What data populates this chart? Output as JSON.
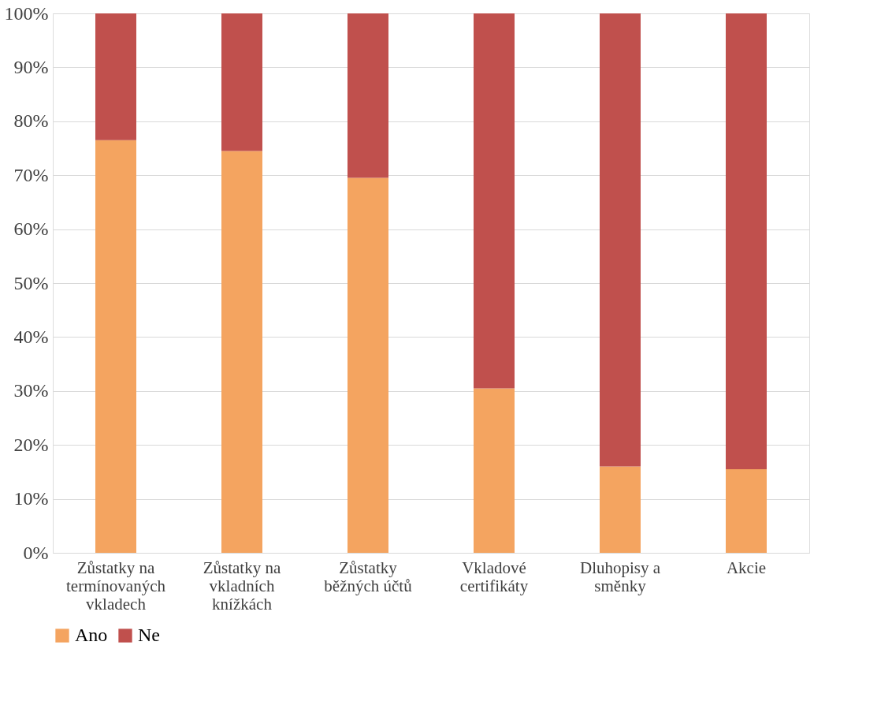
{
  "chart_data": {
    "type": "bar",
    "stacked": true,
    "categories": [
      "Zůstatky na termínovaných vkladech",
      "Zůstatky na vkladních knížkách",
      "Zůstatky běžných účtů",
      "Vkladové certifikáty",
      "Dluhopisy a směnky",
      "Akcie"
    ],
    "series": [
      {
        "name": "Ano",
        "color": "#f4a460",
        "values": [
          76.5,
          74.5,
          69.5,
          30.5,
          16,
          15.5
        ]
      },
      {
        "name": "Ne",
        "color": "#c0504d",
        "values": [
          23.5,
          25.5,
          30.5,
          69.5,
          84,
          84.5
        ]
      }
    ],
    "ylim": [
      0,
      100
    ],
    "yticks": [
      {
        "value": 0,
        "label": "0%"
      },
      {
        "value": 10,
        "label": "10%"
      },
      {
        "value": 20,
        "label": "20%"
      },
      {
        "value": 30,
        "label": "30%"
      },
      {
        "value": 40,
        "label": "40%"
      },
      {
        "value": 50,
        "label": "50%"
      },
      {
        "value": 60,
        "label": "60%"
      },
      {
        "value": 70,
        "label": "70%"
      },
      {
        "value": 80,
        "label": "80%"
      },
      {
        "value": 90,
        "label": "90%"
      },
      {
        "value": 100,
        "label": "100%"
      }
    ],
    "grid": "y",
    "legend": "bottom"
  }
}
